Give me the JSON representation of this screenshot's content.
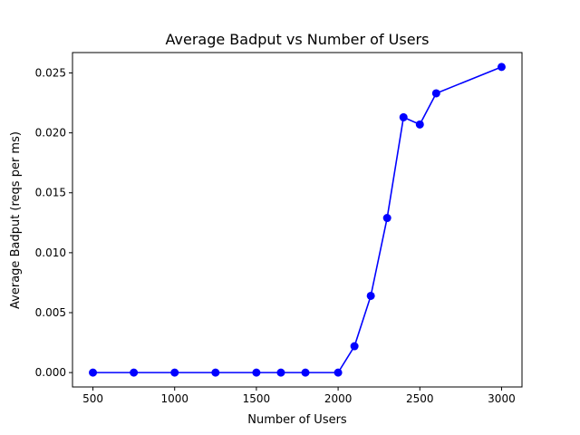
{
  "chart_data": {
    "type": "line",
    "title": "Average Badput vs Number of Users",
    "xlabel": "Number of Users",
    "ylabel": "Average Badput (reqs per ms)",
    "xlim": [
      375,
      3125
    ],
    "ylim": [
      -0.0012,
      0.0267
    ],
    "xticks": [
      500,
      1000,
      1500,
      2000,
      2500,
      3000
    ],
    "xtick_labels": [
      "500",
      "1000",
      "1500",
      "2000",
      "2500",
      "3000"
    ],
    "yticks": [
      0.0,
      0.005,
      0.01,
      0.015,
      0.02,
      0.025
    ],
    "ytick_labels": [
      "0.000",
      "0.005",
      "0.010",
      "0.015",
      "0.020",
      "0.025"
    ],
    "grid": false,
    "series": [
      {
        "color": "#0000ff",
        "marker": "circle",
        "x": [
          500,
          750,
          1000,
          1250,
          1500,
          1650,
          1800,
          2000,
          2100,
          2200,
          2300,
          2400,
          2500,
          2600,
          3000
        ],
        "y": [
          0.0,
          0.0,
          0.0,
          0.0,
          0.0,
          0.0,
          0.0,
          0.0,
          0.0022,
          0.0064,
          0.0129,
          0.0213,
          0.0207,
          0.0233,
          0.0255
        ]
      }
    ]
  }
}
